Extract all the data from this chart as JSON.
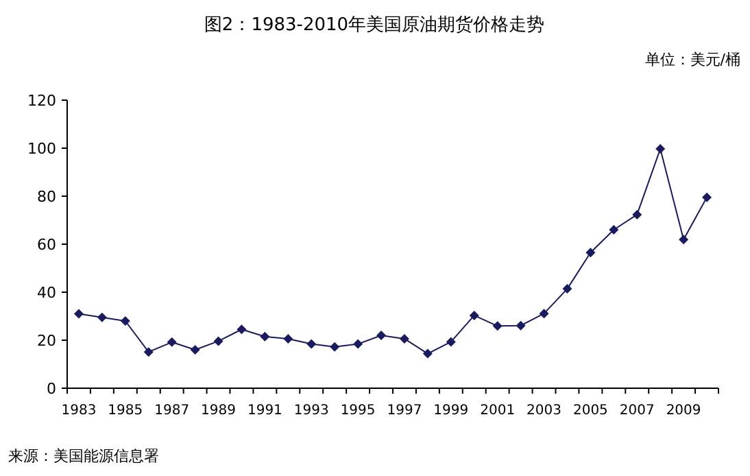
{
  "chart_data": {
    "type": "line",
    "title": "图2：1983-2010年美国原油期货价格走势",
    "annotations": [
      "单位：美元/桶",
      "来源：美国能源信息署"
    ],
    "categories": [
      "1983",
      null,
      "1985",
      null,
      "1987",
      null,
      "1989",
      null,
      "1991",
      null,
      "1993",
      null,
      "1995",
      null,
      "1997",
      null,
      "1999",
      null,
      "2001",
      null,
      "2003",
      null,
      "2005",
      null,
      "2007",
      null,
      "2009",
      null
    ],
    "series": [
      {
        "color": "#1a1a5e",
        "values": [
          31,
          29.5,
          28,
          15.1,
          19.2,
          16,
          19.6,
          24.5,
          21.5,
          20.6,
          18.4,
          17.2,
          18.4,
          22,
          20.6,
          14.4,
          19.3,
          30.3,
          25.9,
          26.1,
          31.1,
          41.4,
          56.5,
          66,
          72.3,
          99.7,
          61.9,
          79.5
        ]
      }
    ],
    "ylim": [
      0,
      120
    ],
    "yticks": [
      0,
      20,
      40,
      60,
      80,
      100,
      120
    ],
    "grid": false,
    "marker": "diamond",
    "line_style": "solid"
  }
}
